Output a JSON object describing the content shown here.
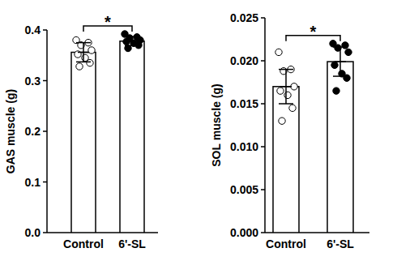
{
  "chart_data": [
    {
      "type": "bar",
      "y_label": "GAS muscle (g)",
      "categories": [
        "Control",
        "6'-SL"
      ],
      "values": [
        0.356,
        0.378
      ],
      "errors": [
        0.019,
        0.009
      ],
      "points": [
        [
          0.38,
          0.375,
          0.37,
          0.36,
          0.352,
          0.345,
          0.335,
          0.328
        ],
        [
          0.392,
          0.386,
          0.384,
          0.38,
          0.377,
          0.374,
          0.37,
          0.364
        ]
      ],
      "colors": [
        "#ffffff",
        "#000000"
      ],
      "ylim": [
        0,
        0.4
      ],
      "yticks": [
        {
          "value": 0,
          "label": "0.0"
        },
        0.1,
        0.2,
        0.3,
        0.4
      ],
      "annotation": "*"
    },
    {
      "type": "bar",
      "y_label": "SOL muscle (g)",
      "categories": [
        "Control",
        "6'-SL"
      ],
      "values": [
        0.017,
        0.0199
      ],
      "errors": [
        0.002,
        0.0017
      ],
      "points": [
        [
          0.021,
          0.019,
          0.0188,
          0.017,
          0.0165,
          0.016,
          0.0145,
          0.013
        ],
        [
          0.022,
          0.0218,
          0.0215,
          0.021,
          0.0195,
          0.0185,
          0.018,
          0.0165
        ]
      ],
      "colors": [
        "#ffffff",
        "#000000"
      ],
      "ylim": [
        0,
        0.025
      ],
      "yticks": [
        {
          "value": 0,
          "label": "0.000"
        },
        {
          "value": 0.005,
          "label": "0.005"
        },
        {
          "value": 0.01,
          "label": "0.010"
        },
        {
          "value": 0.015,
          "label": "0.015"
        },
        {
          "value": 0.02,
          "label": "0.020"
        },
        {
          "value": 0.025,
          "label": "0.025"
        }
      ],
      "annotation": "*"
    }
  ]
}
